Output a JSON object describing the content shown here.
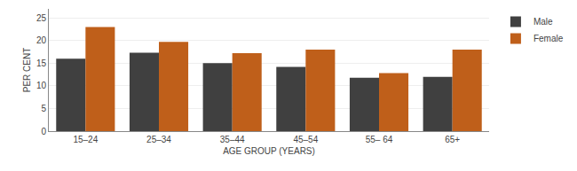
{
  "chart_data": {
    "type": "bar",
    "categories": [
      "15–24",
      "25–34",
      "35–44",
      "45–54",
      "55– 64",
      "65+"
    ],
    "series": [
      {
        "name": "Male",
        "color": "#404040",
        "values": [
          16,
          17.3,
          15,
          14.2,
          11.8,
          12
        ]
      },
      {
        "name": "Female",
        "color": "#bf5f1a",
        "values": [
          23,
          19.7,
          17.2,
          18,
          12.8,
          18
        ]
      }
    ],
    "xlabel": "AGE GROUP (YEARS)",
    "ylabel": "PER CENT",
    "ylim": [
      0,
      27
    ],
    "yticks": [
      0,
      5,
      10,
      15,
      20,
      25
    ],
    "grid": true,
    "legend": "upper right"
  }
}
